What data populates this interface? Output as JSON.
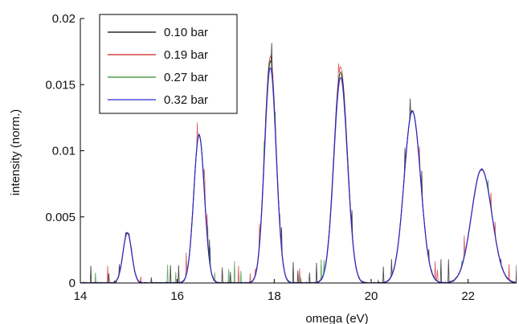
{
  "chart_data": {
    "type": "line",
    "title": "",
    "xlabel": "omega (eV)",
    "ylabel": "intensity (norm.)",
    "xlim": [
      14,
      23
    ],
    "ylim": [
      0,
      0.02
    ],
    "x_ticks": [
      "14",
      "16",
      "18",
      "20",
      "22"
    ],
    "x_tick_values": [
      14,
      16,
      18,
      20,
      22
    ],
    "y_ticks": [
      "0",
      "0.005",
      "0.01",
      "0.015",
      "0.02"
    ],
    "y_tick_values": [
      0,
      0.005,
      0.01,
      0.015,
      0.02
    ],
    "grid": false,
    "legend_position": "top-left",
    "peaks": [
      {
        "x": 14.97,
        "width": 0.09,
        "height": 0.0038
      },
      {
        "x": 16.45,
        "width": 0.11,
        "height": 0.0112
      },
      {
        "x": 17.92,
        "width": 0.12,
        "height": 0.0168
      },
      {
        "x": 19.37,
        "width": 0.14,
        "height": 0.016
      },
      {
        "x": 20.85,
        "width": 0.17,
        "height": 0.013
      },
      {
        "x": 22.28,
        "width": 0.21,
        "height": 0.0086
      }
    ],
    "series": [
      {
        "name": "0.10 bar",
        "color": "#000000",
        "scale": 1.0
      },
      {
        "name": "0.19 bar",
        "color": "#cc2222",
        "scale": 1.02
      },
      {
        "name": "0.27 bar",
        "color": "#2a8a2a",
        "scale": 0.99
      },
      {
        "name": "0.32 bar",
        "color": "#2b2bd6",
        "scale": 0.97
      }
    ]
  }
}
